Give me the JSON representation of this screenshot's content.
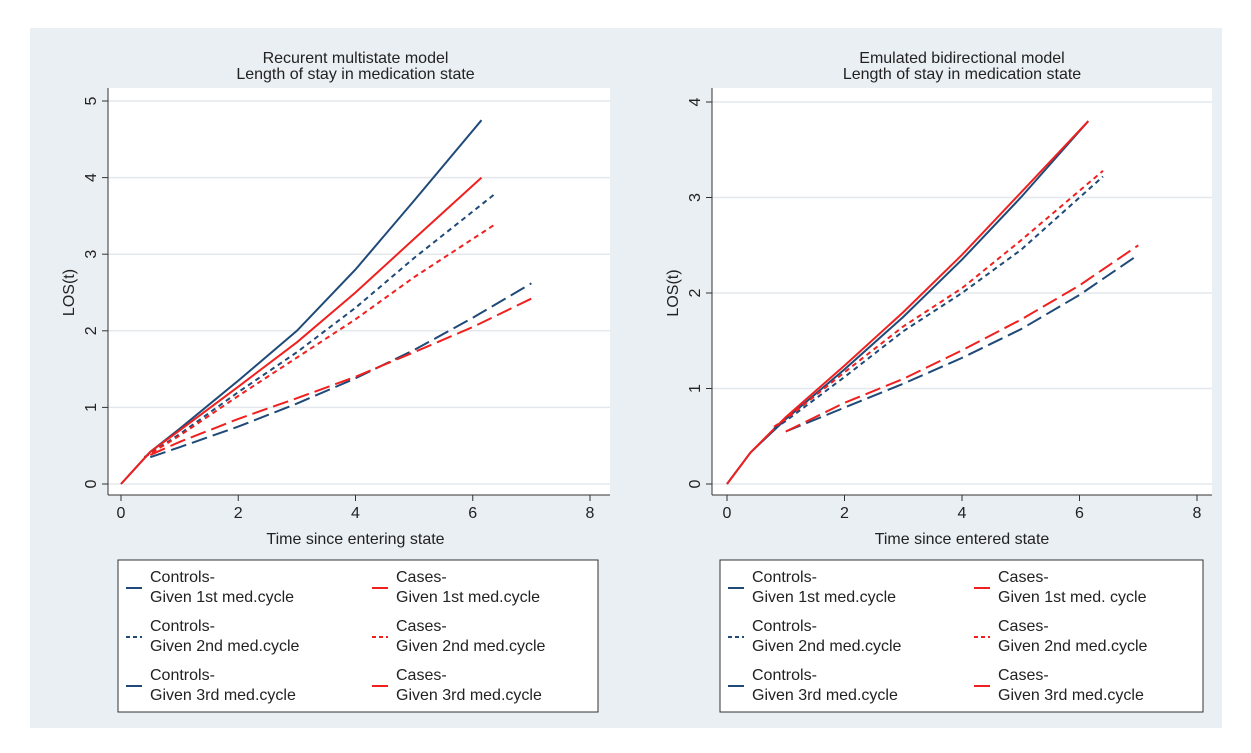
{
  "chart_data": [
    {
      "type": "line",
      "title": "Recurent multistate model",
      "subtitle": "Length of stay in medication state",
      "x_label": "Time since entering state",
      "y_label": "LOS(t)",
      "xlim": [
        0,
        8
      ],
      "xticks": [
        0,
        2,
        4,
        6,
        8
      ],
      "ylim": [
        0,
        5
      ],
      "yticks": [
        0,
        1,
        2,
        3,
        4,
        5
      ],
      "grid": true,
      "series": [
        {
          "name": [
            "Controls-",
            "Given 1st med.cycle"
          ],
          "color": "#1f4a78",
          "dash": "solid",
          "x": [
            0,
            0.5,
            1,
            2,
            3,
            4,
            5,
            6.15
          ],
          "values": [
            0,
            0.42,
            0.72,
            1.35,
            2.0,
            2.8,
            3.7,
            4.75
          ]
        },
        {
          "name": [
            "Cases-",
            "Given 1st med.cycle"
          ],
          "color": "#f0201f",
          "dash": "solid",
          "x": [
            0,
            0.5,
            1,
            2,
            3,
            4,
            5,
            6.15
          ],
          "values": [
            0,
            0.42,
            0.7,
            1.27,
            1.85,
            2.5,
            3.2,
            4.0
          ]
        },
        {
          "name": [
            "Controls-",
            "Given 2nd med.cycle"
          ],
          "color": "#1f4a78",
          "dash": "short",
          "x": [
            0.4,
            1,
            2,
            3,
            4,
            5,
            6.4
          ],
          "values": [
            0.35,
            0.65,
            1.2,
            1.72,
            2.3,
            2.95,
            3.8
          ]
        },
        {
          "name": [
            "Cases-",
            "Given 2nd med.cycle"
          ],
          "color": "#f0201f",
          "dash": "short",
          "x": [
            0.4,
            1,
            2,
            3,
            4,
            5,
            6.4
          ],
          "values": [
            0.35,
            0.63,
            1.15,
            1.65,
            2.15,
            2.7,
            3.4
          ]
        },
        {
          "name": [
            "Controls-",
            "Given 3rd med.cycle"
          ],
          "color": "#1f4a78",
          "dash": "long",
          "x": [
            0.5,
            1,
            2,
            3,
            4,
            5,
            6,
            7
          ],
          "values": [
            0.35,
            0.48,
            0.75,
            1.05,
            1.38,
            1.75,
            2.17,
            2.62
          ]
        },
        {
          "name": [
            "Cases-",
            "Given 3rd med.cycle"
          ],
          "color": "#f0201f",
          "dash": "long",
          "x": [
            0.5,
            1,
            2,
            3,
            4,
            5,
            6,
            7
          ],
          "values": [
            0.38,
            0.55,
            0.85,
            1.12,
            1.4,
            1.72,
            2.05,
            2.42
          ]
        }
      ]
    },
    {
      "type": "line",
      "title": "Emulated bidirectional model",
      "subtitle": "Length of stay in medication state",
      "x_label": "Time since entered state",
      "y_label": "LOS(t)",
      "xlim": [
        0,
        8
      ],
      "xticks": [
        0,
        2,
        4,
        6,
        8
      ],
      "ylim": [
        0,
        4
      ],
      "yticks": [
        0,
        1,
        2,
        3,
        4
      ],
      "grid": true,
      "series": [
        {
          "name": [
            "Controls-",
            "Given 1st med.cycle"
          ],
          "color": "#1f4a78",
          "dash": "solid",
          "x": [
            0,
            0.4,
            1,
            2,
            3,
            4,
            5,
            6.15
          ],
          "values": [
            0,
            0.33,
            0.68,
            1.2,
            1.75,
            2.35,
            3.0,
            3.8
          ]
        },
        {
          "name": [
            "Cases-",
            "Given 1st med. cycle"
          ],
          "color": "#f0201f",
          "dash": "solid",
          "x": [
            0,
            0.4,
            1,
            2,
            3,
            4,
            5,
            6.15
          ],
          "values": [
            0,
            0.33,
            0.7,
            1.24,
            1.8,
            2.4,
            3.05,
            3.8
          ]
        },
        {
          "name": [
            "Controls-",
            "Given 2nd med.cycle"
          ],
          "color": "#1f4a78",
          "dash": "short",
          "x": [
            0.8,
            1,
            2,
            3,
            4,
            5,
            6.4
          ],
          "values": [
            0.58,
            0.66,
            1.12,
            1.6,
            2.0,
            2.45,
            3.22
          ]
        },
        {
          "name": [
            "Cases-",
            "Given 2nd med.cycle"
          ],
          "color": "#f0201f",
          "dash": "short",
          "x": [
            0.8,
            1,
            2,
            3,
            4,
            5,
            6.4
          ],
          "values": [
            0.6,
            0.68,
            1.17,
            1.65,
            2.05,
            2.55,
            3.28
          ]
        },
        {
          "name": [
            "Controls-",
            "Given 3rd med.cycle"
          ],
          "color": "#1f4a78",
          "dash": "long",
          "x": [
            1,
            2,
            3,
            4,
            5,
            6,
            7
          ],
          "values": [
            0.55,
            0.8,
            1.05,
            1.32,
            1.62,
            1.98,
            2.4
          ]
        },
        {
          "name": [
            "Cases-",
            "Given 3rd med.cycle"
          ],
          "color": "#f0201f",
          "dash": "long",
          "x": [
            1,
            2,
            3,
            4,
            5,
            6,
            7
          ],
          "values": [
            0.55,
            0.85,
            1.1,
            1.4,
            1.72,
            2.08,
            2.5
          ]
        }
      ]
    }
  ]
}
